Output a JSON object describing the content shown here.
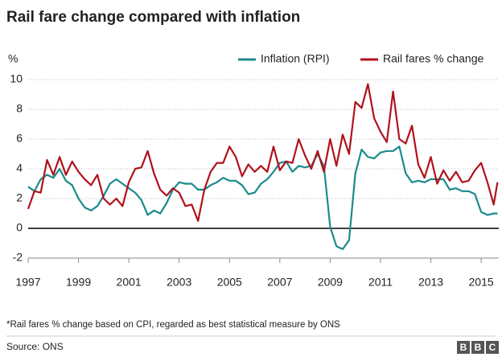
{
  "chart_data": {
    "type": "line",
    "title": "Rail fare change compared with inflation",
    "y_unit": "%",
    "footnote": "*Rail fares % change based on CPI, regarded as best statistical measure by ONS",
    "source": "Source: ONS",
    "logo": [
      "B",
      "B",
      "C"
    ],
    "x": [
      1997,
      1997.25,
      1997.5,
      1997.75,
      1998,
      1998.25,
      1998.5,
      1998.75,
      1999,
      1999.25,
      1999.5,
      1999.75,
      2000,
      2000.25,
      2000.5,
      2000.75,
      2001,
      2001.25,
      2001.5,
      2001.75,
      2002,
      2002.25,
      2002.5,
      2002.75,
      2003,
      2003.25,
      2003.5,
      2003.75,
      2004,
      2004.25,
      2004.5,
      2004.75,
      2005,
      2005.25,
      2005.5,
      2005.75,
      2006,
      2006.25,
      2006.5,
      2006.75,
      2007,
      2007.25,
      2007.5,
      2007.75,
      2008,
      2008.25,
      2008.5,
      2008.75,
      2009,
      2009.25,
      2009.5,
      2009.75,
      2010,
      2010.25,
      2010.5,
      2010.75,
      2011,
      2011.25,
      2011.5,
      2011.75,
      2012,
      2012.25,
      2012.5,
      2012.75,
      2013,
      2013.25,
      2013.5,
      2013.75,
      2014,
      2014.25,
      2014.5,
      2014.75,
      2015,
      2015.25,
      2015.5,
      2015.65
    ],
    "series": [
      {
        "name": "Inflation (RPI)",
        "color": "#1b8a8c",
        "values": [
          2.8,
          2.5,
          3.3,
          3.6,
          3.4,
          4.0,
          3.2,
          2.9,
          2.0,
          1.4,
          1.2,
          1.5,
          2.2,
          3.0,
          3.3,
          3.0,
          2.7,
          2.4,
          1.9,
          0.9,
          1.2,
          1.0,
          1.7,
          2.6,
          3.1,
          3.0,
          3.0,
          2.6,
          2.6,
          2.9,
          3.1,
          3.4,
          3.2,
          3.2,
          2.9,
          2.3,
          2.4,
          3.0,
          3.3,
          3.8,
          4.4,
          4.5,
          3.8,
          4.2,
          4.1,
          4.2,
          5.0,
          4.2,
          0.1,
          -1.2,
          -1.4,
          -0.8,
          3.7,
          5.3,
          4.8,
          4.7,
          5.1,
          5.2,
          5.2,
          5.5,
          3.7,
          3.1,
          3.2,
          3.1,
          3.3,
          3.3,
          3.3,
          2.6,
          2.7,
          2.5,
          2.5,
          2.3,
          1.1,
          0.9,
          1.0,
          1.0
        ]
      },
      {
        "name": "Rail fares % change",
        "color": "#b0121c",
        "values": [
          1.3,
          2.5,
          2.4,
          4.6,
          3.6,
          4.8,
          3.6,
          4.5,
          3.8,
          3.3,
          2.9,
          3.6,
          2.0,
          1.6,
          2.0,
          1.5,
          3.1,
          4.0,
          4.1,
          5.2,
          3.7,
          2.6,
          2.2,
          2.7,
          2.4,
          1.5,
          1.6,
          0.5,
          2.6,
          3.8,
          4.4,
          4.4,
          5.5,
          4.8,
          3.5,
          4.3,
          3.8,
          4.2,
          3.8,
          5.5,
          3.9,
          4.5,
          4.4,
          6.0,
          4.9,
          4.0,
          5.2,
          3.8,
          6.0,
          4.2,
          6.3,
          5.0,
          8.5,
          8.1,
          9.7,
          7.4,
          6.5,
          5.8,
          9.2,
          6.0,
          5.7,
          6.9,
          4.3,
          3.4,
          4.8,
          3.0,
          3.9,
          3.2,
          3.8,
          3.1,
          3.2,
          3.9,
          4.4,
          3.1,
          1.6,
          3.1
        ]
      }
    ],
    "xlim": [
      1997,
      2015.7
    ],
    "xticks": [
      1997,
      1999,
      2001,
      2003,
      2005,
      2007,
      2009,
      2011,
      2013,
      2015
    ],
    "ylim": [
      -2,
      10
    ],
    "yticks": [
      -2,
      0,
      2,
      4,
      6,
      8,
      10
    ],
    "grid": true
  }
}
